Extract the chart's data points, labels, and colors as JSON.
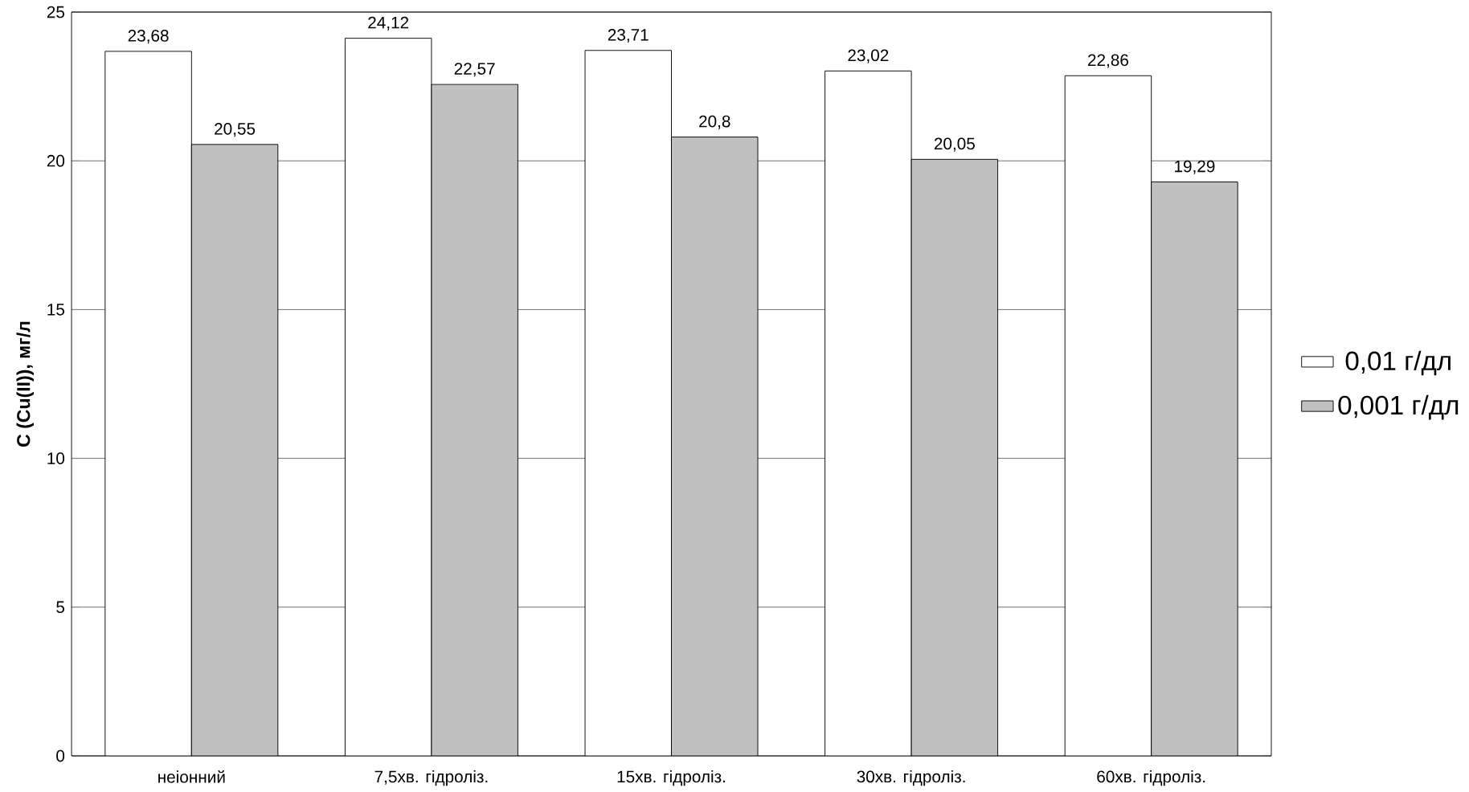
{
  "chart_data": {
    "type": "bar",
    "ylabel": "C (Cu(II)), мг/л",
    "categories": [
      "неіонний",
      "7,5хв. гідроліз.",
      "15хв. гідроліз.",
      "30хв. гідроліз.",
      "60хв. гідроліз."
    ],
    "series": [
      {
        "name": "0,01 г/дл",
        "color": "#ffffff",
        "values": [
          23.68,
          24.12,
          23.71,
          23.02,
          22.86
        ],
        "value_labels": [
          "23,68",
          "24,12",
          "23,71",
          "23,02",
          "22,86"
        ]
      },
      {
        "name": "0,001 г/дл",
        "color": "#c0c0c0",
        "values": [
          20.55,
          22.57,
          20.8,
          20.05,
          19.29
        ],
        "value_labels": [
          "20,55",
          "22,57",
          "20,8",
          "20,05",
          "19,29"
        ]
      }
    ],
    "ylim": [
      0,
      25
    ],
    "yticks": [
      0,
      5,
      10,
      15,
      20,
      25
    ],
    "grid": "y",
    "legend": "right"
  }
}
